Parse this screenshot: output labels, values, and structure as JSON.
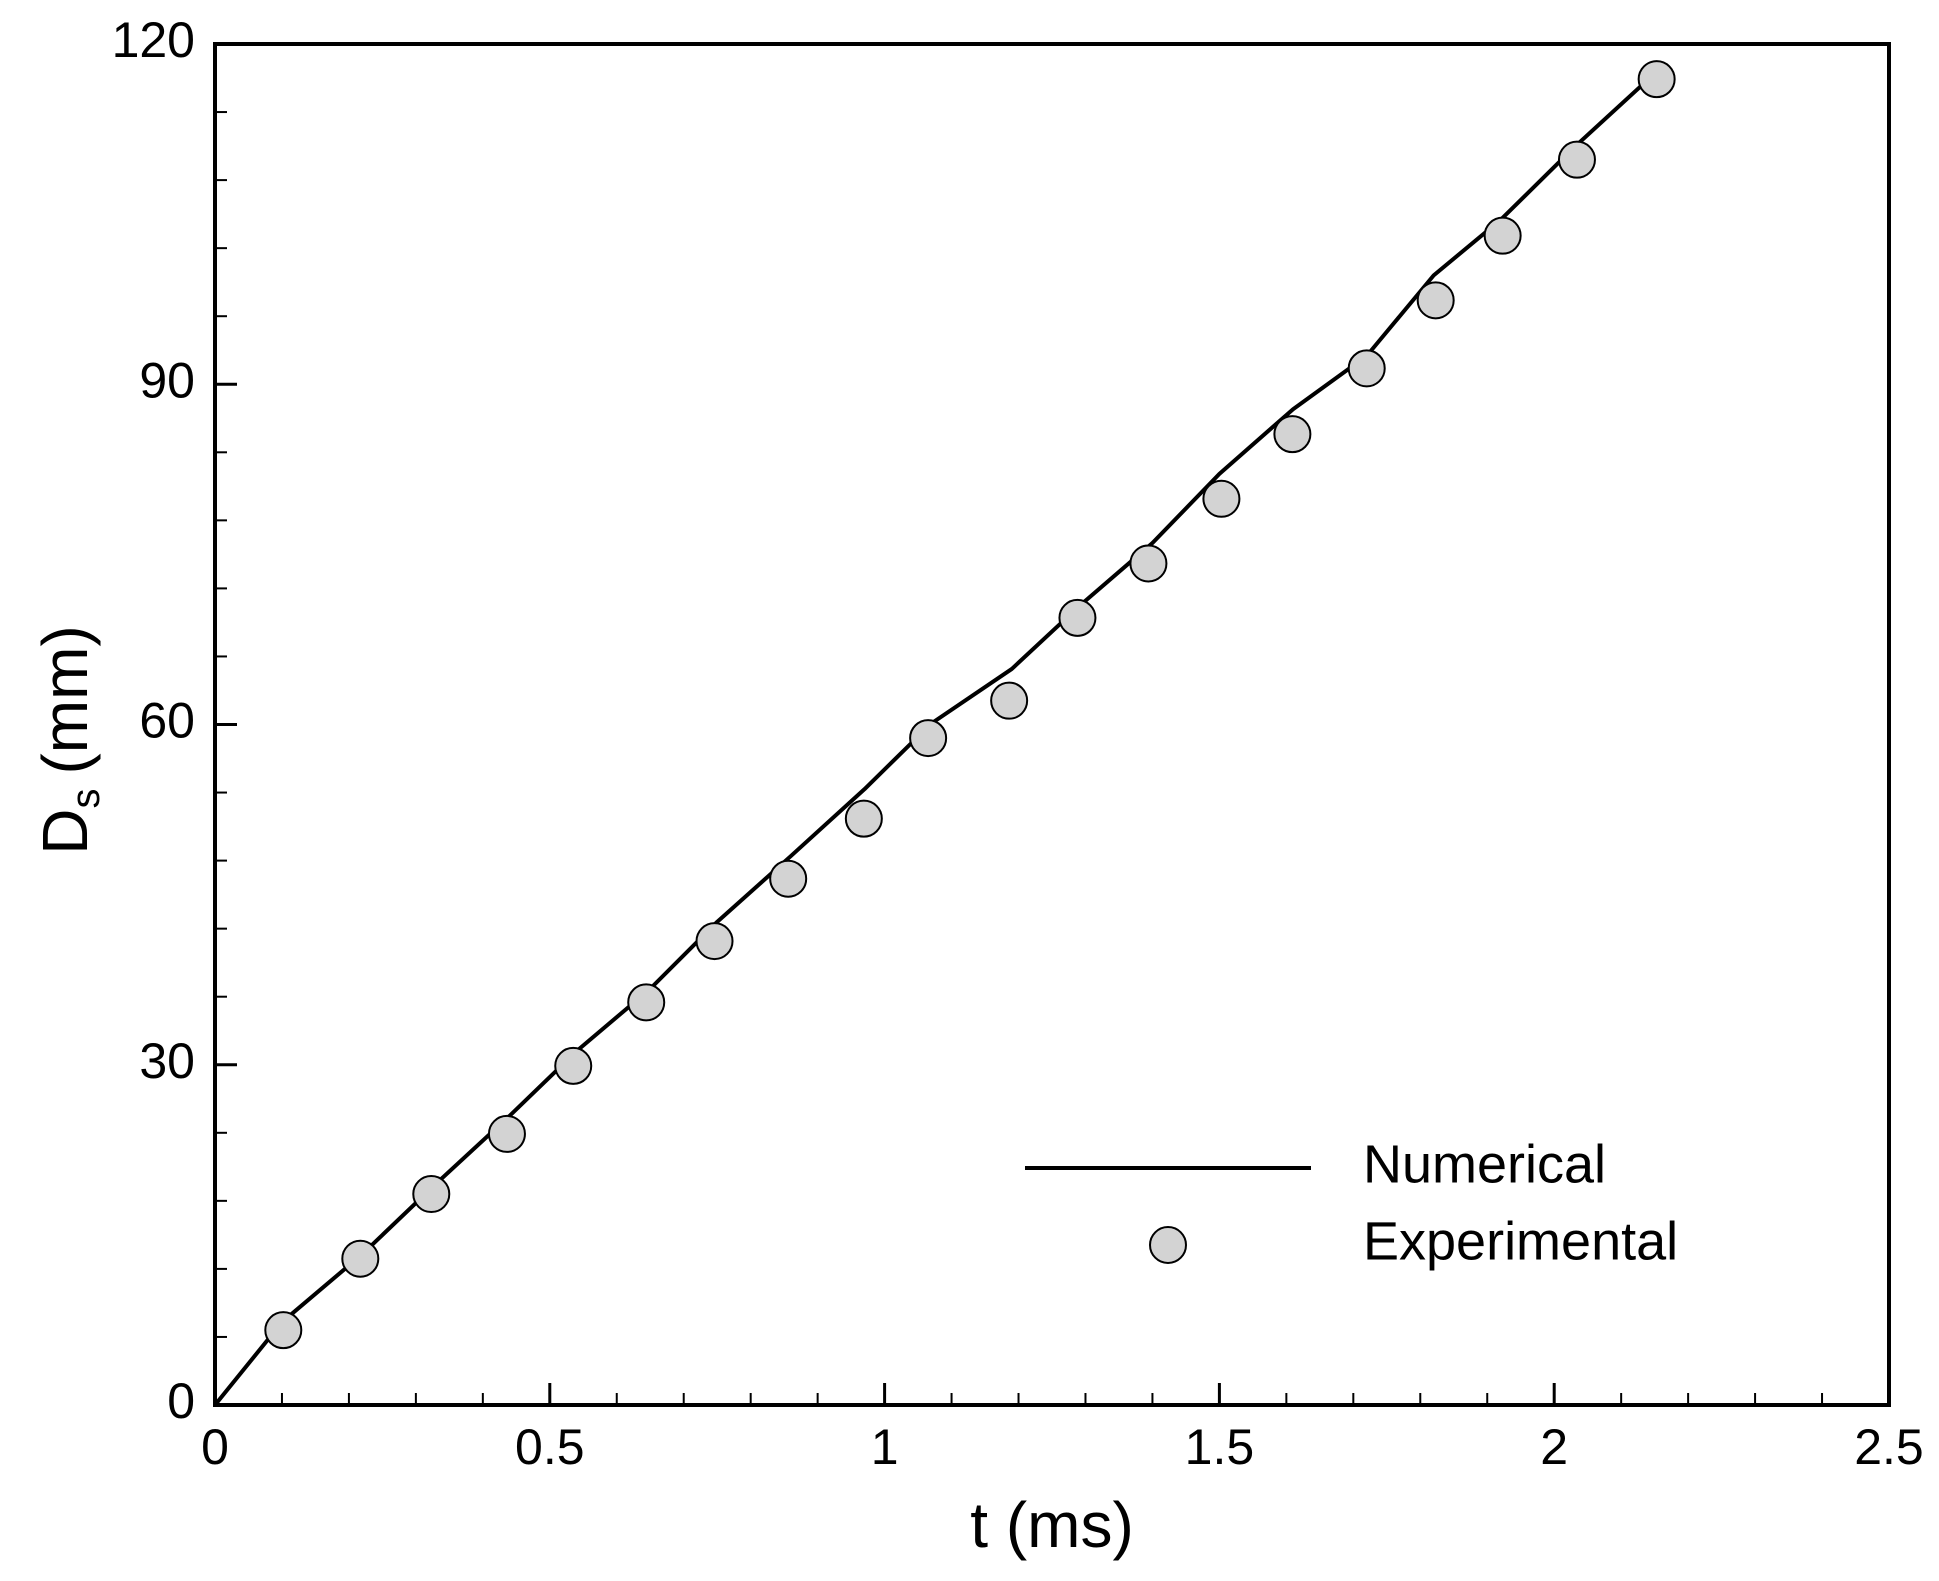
{
  "chart_data": {
    "type": "line",
    "xlabel": "t (ms)",
    "ylabel": {
      "main": "D",
      "sub": "s",
      "unit": "(mm)"
    },
    "xlim": [
      0,
      2.5
    ],
    "ylim": [
      0,
      120
    ],
    "xticks": [
      0,
      0.5,
      1,
      1.5,
      2,
      2.5
    ],
    "yticks": [
      0,
      30,
      60,
      90,
      120
    ],
    "xminorticks": [
      0.1,
      0.2,
      0.3,
      0.4,
      0.6,
      0.7,
      0.8,
      0.9,
      1.1,
      1.2,
      1.3,
      1.4,
      1.6,
      1.7,
      1.8,
      1.9,
      2.1,
      2.2,
      2.3,
      2.4
    ],
    "yminorticks": [
      6,
      12,
      18,
      24,
      36,
      42,
      48,
      54,
      66,
      72,
      78,
      84,
      96,
      102,
      108,
      114
    ],
    "legend": "lower right",
    "series": [
      {
        "name": "Numerical",
        "style": "line",
        "color": "#000000",
        "x": [
          0,
          0.1,
          0.22,
          0.33,
          0.44,
          0.54,
          0.65,
          0.75,
          0.86,
          0.97,
          1.07,
          1.19,
          1.29,
          1.4,
          1.5,
          1.61,
          1.72,
          1.82,
          1.92,
          2.03,
          2.15
        ],
        "values": [
          0,
          7.3,
          13.3,
          19.5,
          25.5,
          31.2,
          36.7,
          42.6,
          48.4,
          54.3,
          60.1,
          64.9,
          70.4,
          76,
          82.1,
          87.8,
          92.5,
          99.6,
          104.5,
          110.9,
          117.4
        ]
      },
      {
        "name": "Experimental",
        "style": "marker",
        "color": "#d3d3d3",
        "x": [
          0.102,
          0.217,
          0.323,
          0.436,
          0.535,
          0.644,
          0.746,
          0.856,
          0.969,
          1.065,
          1.186,
          1.288,
          1.394,
          1.503,
          1.609,
          1.72,
          1.823,
          1.923,
          2.034,
          2.153
        ],
        "values": [
          6.6,
          12.9,
          18.6,
          23.9,
          29.9,
          35.5,
          40.9,
          46.4,
          51.7,
          58.8,
          62.1,
          69.4,
          74.2,
          79.9,
          85.6,
          91.4,
          97.4,
          103.1,
          109.8,
          116.9
        ]
      }
    ]
  }
}
